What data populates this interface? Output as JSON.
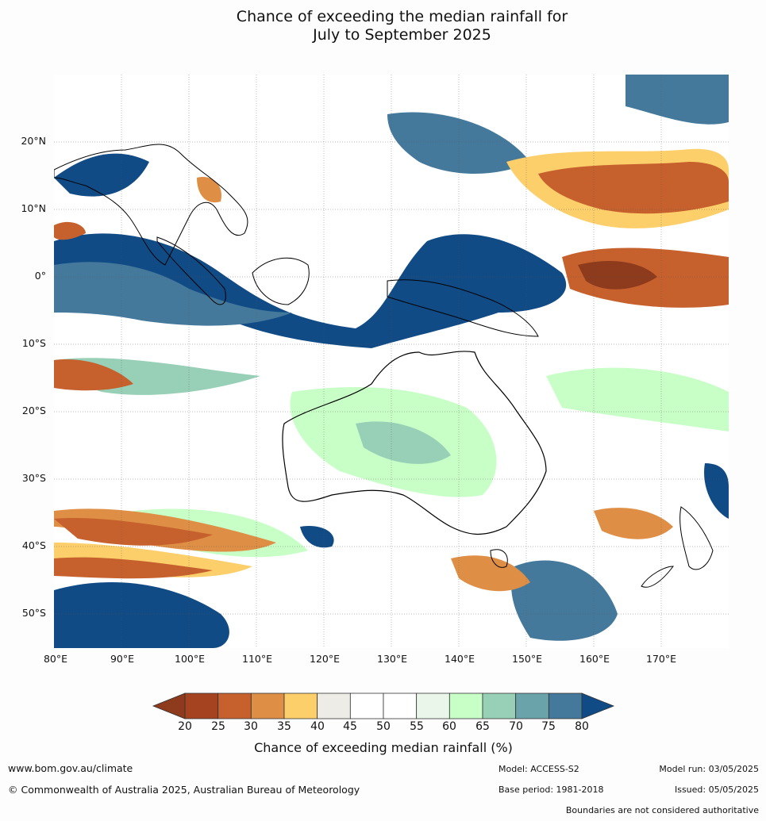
{
  "title_line1": "Chance of exceeding the median rainfall for",
  "title_line2": "July to September 2025",
  "lat_ticks": [
    "20°N",
    "10°N",
    "0°",
    "10°S",
    "20°S",
    "30°S",
    "40°S",
    "50°S"
  ],
  "lon_ticks": [
    "80°E",
    "90°E",
    "100°E",
    "110°E",
    "120°E",
    "130°E",
    "140°E",
    "150°E",
    "160°E",
    "170°E"
  ],
  "colorbar": {
    "labels": [
      "20",
      "25",
      "30",
      "35",
      "40",
      "45",
      "50",
      "55",
      "60",
      "65",
      "70",
      "75",
      "80"
    ],
    "colors": [
      "#a5421f",
      "#c6612d",
      "#de8f45",
      "#fdcf6b",
      "#eeece7",
      "#ffffff",
      "#ffffff",
      "#e9f6e9",
      "#c8ffc7",
      "#98d0b7",
      "#6aa3a9",
      "#44799b"
    ],
    "under_color": "#8e3a1d",
    "over_color": "#114b86",
    "title": "Chance of exceeding median rainfall (%)"
  },
  "footer": {
    "website": "www.bom.gov.au/climate",
    "copyright": "© Commonwealth of Australia 2025, Australian Bureau of Meteorology",
    "model": "Model: ACCESS-S2",
    "base_period": "Base period: 1981-2018",
    "model_run": "Model run: 03/05/2025",
    "issued": "Issued: 05/05/2025",
    "disclaimer": "Boundaries are not considered authoritative"
  }
}
